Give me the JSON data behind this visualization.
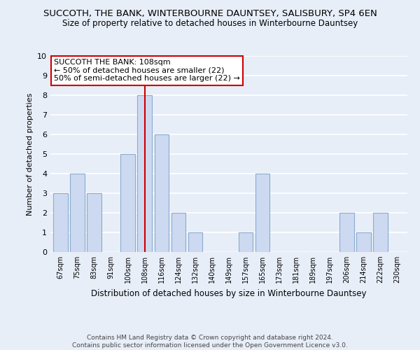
{
  "title": "SUCCOTH, THE BANK, WINTERBOURNE DAUNTSEY, SALISBURY, SP4 6EN",
  "subtitle": "Size of property relative to detached houses in Winterbourne Dauntsey",
  "xlabel": "Distribution of detached houses by size in Winterbourne Dauntsey",
  "ylabel": "Number of detached properties",
  "categories": [
    "67sqm",
    "75sqm",
    "83sqm",
    "91sqm",
    "100sqm",
    "108sqm",
    "116sqm",
    "124sqm",
    "132sqm",
    "140sqm",
    "149sqm",
    "157sqm",
    "165sqm",
    "173sqm",
    "181sqm",
    "189sqm",
    "197sqm",
    "206sqm",
    "214sqm",
    "222sqm",
    "230sqm"
  ],
  "values": [
    3,
    4,
    3,
    0,
    5,
    8,
    6,
    2,
    1,
    0,
    0,
    1,
    4,
    0,
    0,
    0,
    0,
    2,
    1,
    2,
    0
  ],
  "bar_color": "#ccd9f0",
  "bar_edge_color": "#8aabcf",
  "highlight_index": 5,
  "highlight_line_color": "#cc0000",
  "ylim": [
    0,
    10
  ],
  "yticks": [
    0,
    1,
    2,
    3,
    4,
    5,
    6,
    7,
    8,
    9,
    10
  ],
  "annotation_title": "SUCCOTH THE BANK: 108sqm",
  "annotation_line1": "← 50% of detached houses are smaller (22)",
  "annotation_line2": "50% of semi-detached houses are larger (22) →",
  "annotation_box_color": "#ffffff",
  "annotation_box_edge_color": "#cc0000",
  "footer_line1": "Contains HM Land Registry data © Crown copyright and database right 2024.",
  "footer_line2": "Contains public sector information licensed under the Open Government Licence v3.0.",
  "background_color": "#e8eef8",
  "grid_color": "#ffffff",
  "title_fontsize": 9.5,
  "subtitle_fontsize": 8.5,
  "annotation_fontsize": 8,
  "footer_fontsize": 6.5,
  "ylabel_fontsize": 8,
  "xlabel_fontsize": 8.5
}
